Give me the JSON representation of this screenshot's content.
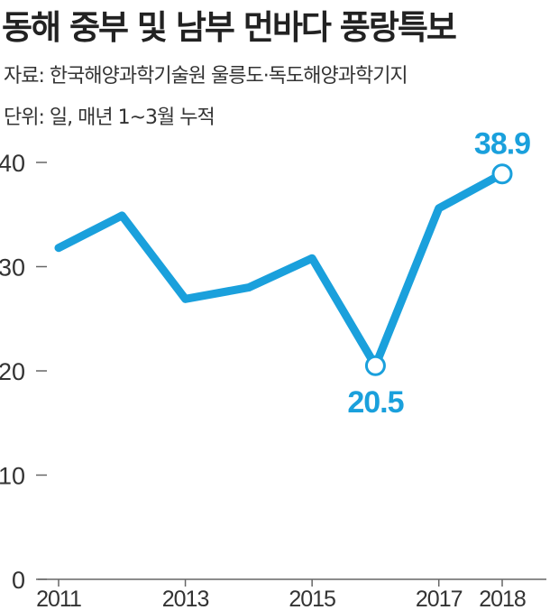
{
  "title": "동해 중부 및 남부 먼바다 풍랑특보",
  "source": "자료: 한국해양과학기술원 울릉도·독도해양과학기지",
  "unit": "단위: 일, 매년 1~3월 누적",
  "chart_data": {
    "type": "line",
    "title": "동해 중부 및 남부 먼바다 풍랑특보",
    "xlabel": "",
    "ylabel": "",
    "x": [
      2011,
      2012,
      2013,
      2014,
      2015,
      2016,
      2017,
      2018
    ],
    "x_tick_labels": [
      "2011",
      "2013",
      "2015",
      "2017",
      "2018"
    ],
    "x_tick_values": [
      2011,
      2013,
      2015,
      2017,
      2018
    ],
    "y_ticks": [
      0,
      10,
      20,
      30,
      40
    ],
    "ylim": [
      0,
      40
    ],
    "series": [
      {
        "name": "",
        "values": [
          31.8,
          34.9,
          26.9,
          28.0,
          30.8,
          20.5,
          35.6,
          38.9
        ],
        "color": "#1aa0dc"
      }
    ],
    "annotations": [
      {
        "x": 2016,
        "value": 20.5,
        "text": "20.5"
      },
      {
        "x": 2018,
        "value": 38.9,
        "text": "38.9"
      }
    ],
    "grid": false,
    "legend": "none"
  },
  "colors": {
    "line": "#1aa0dc",
    "text": "#222222",
    "axis": "#666666"
  }
}
